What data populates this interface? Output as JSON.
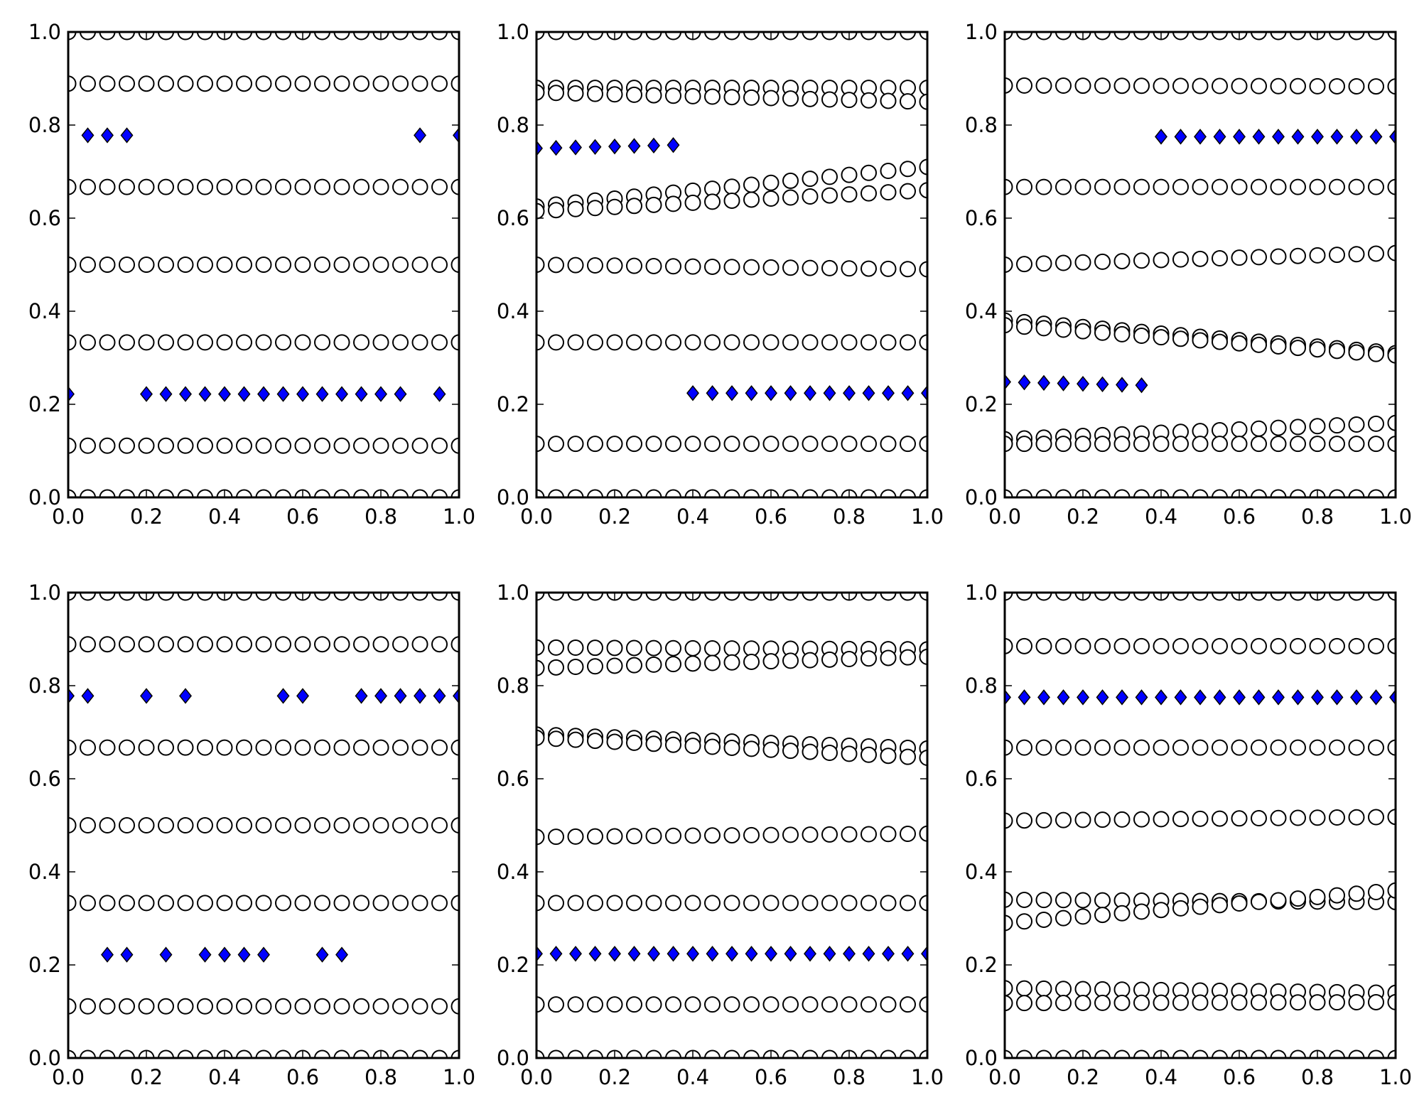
{
  "colors": {
    "diamond_fill": "#0000ff",
    "marker_edge": "#000000",
    "circle_fill": "#ffffff",
    "background": "#ffffff"
  },
  "chart_data": [
    {
      "type": "scatter",
      "title": "",
      "xlabel": "",
      "ylabel": "",
      "xlim": [
        0,
        1
      ],
      "ylim": [
        0,
        1
      ],
      "xticks": [
        "0.0",
        "0.2",
        "0.4",
        "0.6",
        "0.8",
        "1.0"
      ],
      "yticks": [
        "0.0",
        "0.2",
        "0.4",
        "0.6",
        "0.8",
        "1.0"
      ],
      "grid": false,
      "legend": "none",
      "circle_series": [
        {
          "y": [
            1.0,
            1.0
          ]
        },
        {
          "y": [
            0.889,
            0.889
          ]
        },
        {
          "y": [
            0.667,
            0.667
          ]
        },
        {
          "y": [
            0.5,
            0.5
          ]
        },
        {
          "y": [
            0.333,
            0.333
          ]
        },
        {
          "y": [
            0.111,
            0.111
          ]
        },
        {
          "y": [
            0.0,
            0.0
          ]
        }
      ],
      "diamonds": [
        {
          "x": 0.0,
          "y": 0.222
        },
        {
          "x": 0.05,
          "y": 0.778
        },
        {
          "x": 0.1,
          "y": 0.778
        },
        {
          "x": 0.15,
          "y": 0.778
        },
        {
          "x": 0.2,
          "y": 0.222
        },
        {
          "x": 0.25,
          "y": 0.222
        },
        {
          "x": 0.3,
          "y": 0.222
        },
        {
          "x": 0.35,
          "y": 0.222
        },
        {
          "x": 0.4,
          "y": 0.222
        },
        {
          "x": 0.45,
          "y": 0.222
        },
        {
          "x": 0.5,
          "y": 0.222
        },
        {
          "x": 0.55,
          "y": 0.222
        },
        {
          "x": 0.6,
          "y": 0.222
        },
        {
          "x": 0.65,
          "y": 0.222
        },
        {
          "x": 0.7,
          "y": 0.222
        },
        {
          "x": 0.75,
          "y": 0.222
        },
        {
          "x": 0.8,
          "y": 0.222
        },
        {
          "x": 0.85,
          "y": 0.222
        },
        {
          "x": 0.9,
          "y": 0.778
        },
        {
          "x": 0.95,
          "y": 0.222
        },
        {
          "x": 1.0,
          "y": 0.778
        }
      ]
    },
    {
      "type": "scatter",
      "title": "",
      "xlabel": "",
      "ylabel": "",
      "xlim": [
        0,
        1
      ],
      "ylim": [
        0,
        1
      ],
      "xticks": [
        "0.0",
        "0.2",
        "0.4",
        "0.6",
        "0.8",
        "1.0"
      ],
      "yticks": [
        "0.0",
        "0.2",
        "0.4",
        "0.6",
        "0.8",
        "1.0"
      ],
      "grid": false,
      "legend": "none",
      "circle_series": [
        {
          "y": [
            1.0,
            1.0
          ]
        },
        {
          "y": [
            0.88,
            0.88
          ]
        },
        {
          "y": [
            0.87,
            0.85
          ]
        },
        {
          "y": [
            0.625,
            0.71
          ]
        },
        {
          "y": [
            0.615,
            0.66
          ]
        },
        {
          "y": [
            0.5,
            0.49
          ]
        },
        {
          "y": [
            0.333,
            0.333
          ]
        },
        {
          "y": [
            0.115,
            0.115
          ]
        },
        {
          "y": [
            0.0,
            0.0
          ]
        }
      ],
      "diamonds": [
        {
          "x": 0.0,
          "y": 0.75
        },
        {
          "x": 0.05,
          "y": 0.751
        },
        {
          "x": 0.1,
          "y": 0.752
        },
        {
          "x": 0.15,
          "y": 0.753
        },
        {
          "x": 0.2,
          "y": 0.754
        },
        {
          "x": 0.25,
          "y": 0.755
        },
        {
          "x": 0.3,
          "y": 0.756
        },
        {
          "x": 0.35,
          "y": 0.757
        },
        {
          "x": 0.4,
          "y": 0.224
        },
        {
          "x": 0.45,
          "y": 0.224
        },
        {
          "x": 0.5,
          "y": 0.224
        },
        {
          "x": 0.55,
          "y": 0.224
        },
        {
          "x": 0.6,
          "y": 0.224
        },
        {
          "x": 0.65,
          "y": 0.224
        },
        {
          "x": 0.7,
          "y": 0.224
        },
        {
          "x": 0.75,
          "y": 0.224
        },
        {
          "x": 0.8,
          "y": 0.224
        },
        {
          "x": 0.85,
          "y": 0.224
        },
        {
          "x": 0.9,
          "y": 0.224
        },
        {
          "x": 0.95,
          "y": 0.224
        },
        {
          "x": 1.0,
          "y": 0.224
        }
      ]
    },
    {
      "type": "scatter",
      "title": "",
      "xlabel": "",
      "ylabel": "",
      "xlim": [
        0,
        1
      ],
      "ylim": [
        0,
        1
      ],
      "xticks": [
        "0.0",
        "0.2",
        "0.4",
        "0.6",
        "0.8",
        "1.0"
      ],
      "yticks": [
        "0.0",
        "0.2",
        "0.4",
        "0.6",
        "0.8",
        "1.0"
      ],
      "grid": false,
      "legend": "none",
      "circle_series": [
        {
          "y": [
            1.0,
            1.0
          ]
        },
        {
          "y": [
            0.885,
            0.883
          ]
        },
        {
          "y": [
            0.667,
            0.667
          ]
        },
        {
          "y": [
            0.5,
            0.525
          ]
        },
        {
          "y": [
            0.38,
            0.31
          ]
        },
        {
          "y": [
            0.37,
            0.305
          ]
        },
        {
          "y": [
            0.125,
            0.16
          ]
        },
        {
          "y": [
            0.115,
            0.115
          ]
        },
        {
          "y": [
            0.0,
            0.0
          ]
        }
      ],
      "diamonds": [
        {
          "x": 0.0,
          "y": 0.248
        },
        {
          "x": 0.05,
          "y": 0.247
        },
        {
          "x": 0.1,
          "y": 0.246
        },
        {
          "x": 0.15,
          "y": 0.245
        },
        {
          "x": 0.2,
          "y": 0.244
        },
        {
          "x": 0.25,
          "y": 0.243
        },
        {
          "x": 0.3,
          "y": 0.242
        },
        {
          "x": 0.35,
          "y": 0.241
        },
        {
          "x": 0.4,
          "y": 0.775
        },
        {
          "x": 0.45,
          "y": 0.775
        },
        {
          "x": 0.5,
          "y": 0.775
        },
        {
          "x": 0.55,
          "y": 0.775
        },
        {
          "x": 0.6,
          "y": 0.775
        },
        {
          "x": 0.65,
          "y": 0.775
        },
        {
          "x": 0.7,
          "y": 0.775
        },
        {
          "x": 0.75,
          "y": 0.775
        },
        {
          "x": 0.8,
          "y": 0.775
        },
        {
          "x": 0.85,
          "y": 0.775
        },
        {
          "x": 0.9,
          "y": 0.775
        },
        {
          "x": 0.95,
          "y": 0.775
        },
        {
          "x": 1.0,
          "y": 0.775
        }
      ]
    },
    {
      "type": "scatter",
      "title": "",
      "xlabel": "",
      "ylabel": "",
      "xlim": [
        0,
        1
      ],
      "ylim": [
        0,
        1
      ],
      "xticks": [
        "0.0",
        "0.2",
        "0.4",
        "0.6",
        "0.8",
        "1.0"
      ],
      "yticks": [
        "0.0",
        "0.2",
        "0.4",
        "0.6",
        "0.8",
        "1.0"
      ],
      "grid": false,
      "legend": "none",
      "circle_series": [
        {
          "y": [
            1.0,
            1.0
          ]
        },
        {
          "y": [
            0.889,
            0.889
          ]
        },
        {
          "y": [
            0.667,
            0.667
          ]
        },
        {
          "y": [
            0.5,
            0.5
          ]
        },
        {
          "y": [
            0.333,
            0.333
          ]
        },
        {
          "y": [
            0.111,
            0.111
          ]
        },
        {
          "y": [
            0.0,
            0.0
          ]
        }
      ],
      "diamonds": [
        {
          "x": 0.0,
          "y": 0.778
        },
        {
          "x": 0.05,
          "y": 0.778
        },
        {
          "x": 0.1,
          "y": 0.222
        },
        {
          "x": 0.15,
          "y": 0.222
        },
        {
          "x": 0.2,
          "y": 0.778
        },
        {
          "x": 0.25,
          "y": 0.222
        },
        {
          "x": 0.3,
          "y": 0.778
        },
        {
          "x": 0.35,
          "y": 0.222
        },
        {
          "x": 0.4,
          "y": 0.222
        },
        {
          "x": 0.45,
          "y": 0.222
        },
        {
          "x": 0.5,
          "y": 0.222
        },
        {
          "x": 0.55,
          "y": 0.778
        },
        {
          "x": 0.6,
          "y": 0.778
        },
        {
          "x": 0.65,
          "y": 0.222
        },
        {
          "x": 0.7,
          "y": 0.222
        },
        {
          "x": 0.75,
          "y": 0.778
        },
        {
          "x": 0.8,
          "y": 0.778
        },
        {
          "x": 0.85,
          "y": 0.778
        },
        {
          "x": 0.9,
          "y": 0.778
        },
        {
          "x": 0.95,
          "y": 0.778
        },
        {
          "x": 1.0,
          "y": 0.778
        }
      ]
    },
    {
      "type": "scatter",
      "title": "",
      "xlabel": "",
      "ylabel": "",
      "xlim": [
        0,
        1
      ],
      "ylim": [
        0,
        1
      ],
      "xticks": [
        "0.0",
        "0.2",
        "0.4",
        "0.6",
        "0.8",
        "1.0"
      ],
      "yticks": [
        "0.0",
        "0.2",
        "0.4",
        "0.6",
        "0.8",
        "1.0"
      ],
      "grid": false,
      "legend": "none",
      "circle_series": [
        {
          "y": [
            1.0,
            1.0
          ]
        },
        {
          "y": [
            0.882,
            0.878
          ]
        },
        {
          "y": [
            0.838,
            0.862
          ]
        },
        {
          "y": [
            0.695,
            0.665
          ]
        },
        {
          "y": [
            0.688,
            0.645
          ]
        },
        {
          "y": [
            0.475,
            0.482
          ]
        },
        {
          "y": [
            0.333,
            0.333
          ]
        },
        {
          "y": [
            0.115,
            0.115
          ]
        },
        {
          "y": [
            0.0,
            0.0
          ]
        }
      ],
      "diamonds": [
        {
          "x": 0.0,
          "y": 0.224
        },
        {
          "x": 0.05,
          "y": 0.224
        },
        {
          "x": 0.1,
          "y": 0.224
        },
        {
          "x": 0.15,
          "y": 0.224
        },
        {
          "x": 0.2,
          "y": 0.224
        },
        {
          "x": 0.25,
          "y": 0.224
        },
        {
          "x": 0.3,
          "y": 0.224
        },
        {
          "x": 0.35,
          "y": 0.224
        },
        {
          "x": 0.4,
          "y": 0.224
        },
        {
          "x": 0.45,
          "y": 0.224
        },
        {
          "x": 0.5,
          "y": 0.224
        },
        {
          "x": 0.55,
          "y": 0.224
        },
        {
          "x": 0.6,
          "y": 0.224
        },
        {
          "x": 0.65,
          "y": 0.224
        },
        {
          "x": 0.7,
          "y": 0.224
        },
        {
          "x": 0.75,
          "y": 0.224
        },
        {
          "x": 0.8,
          "y": 0.224
        },
        {
          "x": 0.85,
          "y": 0.224
        },
        {
          "x": 0.9,
          "y": 0.224
        },
        {
          "x": 0.95,
          "y": 0.224
        },
        {
          "x": 1.0,
          "y": 0.224
        }
      ]
    },
    {
      "type": "scatter",
      "title": "",
      "xlabel": "",
      "ylabel": "",
      "xlim": [
        0,
        1
      ],
      "ylim": [
        0,
        1
      ],
      "xticks": [
        "0.0",
        "0.2",
        "0.4",
        "0.6",
        "0.8",
        "1.0"
      ],
      "yticks": [
        "0.0",
        "0.2",
        "0.4",
        "0.6",
        "0.8",
        "1.0"
      ],
      "grid": false,
      "legend": "none",
      "circle_series": [
        {
          "y": [
            1.0,
            1.0
          ]
        },
        {
          "y": [
            0.885,
            0.885
          ]
        },
        {
          "y": [
            0.667,
            0.667
          ]
        },
        {
          "y": [
            0.51,
            0.518
          ]
        },
        {
          "y": [
            0.34,
            0.335
          ]
        },
        {
          "y": [
            0.29,
            0.36
          ]
        },
        {
          "y": [
            0.15,
            0.14
          ]
        },
        {
          "y": [
            0.118,
            0.12
          ]
        },
        {
          "y": [
            0.0,
            0.0
          ]
        }
      ],
      "diamonds": [
        {
          "x": 0.0,
          "y": 0.775
        },
        {
          "x": 0.05,
          "y": 0.775
        },
        {
          "x": 0.1,
          "y": 0.775
        },
        {
          "x": 0.15,
          "y": 0.775
        },
        {
          "x": 0.2,
          "y": 0.775
        },
        {
          "x": 0.25,
          "y": 0.775
        },
        {
          "x": 0.3,
          "y": 0.775
        },
        {
          "x": 0.35,
          "y": 0.775
        },
        {
          "x": 0.4,
          "y": 0.775
        },
        {
          "x": 0.45,
          "y": 0.775
        },
        {
          "x": 0.5,
          "y": 0.775
        },
        {
          "x": 0.55,
          "y": 0.775
        },
        {
          "x": 0.6,
          "y": 0.775
        },
        {
          "x": 0.65,
          "y": 0.775
        },
        {
          "x": 0.7,
          "y": 0.775
        },
        {
          "x": 0.75,
          "y": 0.775
        },
        {
          "x": 0.8,
          "y": 0.775
        },
        {
          "x": 0.85,
          "y": 0.775
        },
        {
          "x": 0.9,
          "y": 0.775
        },
        {
          "x": 0.95,
          "y": 0.775
        },
        {
          "x": 1.0,
          "y": 0.775
        }
      ]
    }
  ]
}
